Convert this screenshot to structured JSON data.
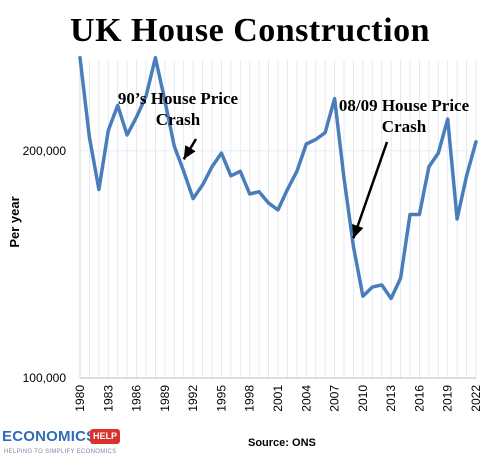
{
  "chart_data": {
    "type": "line",
    "title": "UK House Construction",
    "ylabel": "Per year",
    "xlabel": "",
    "ylim": [
      100000,
      240000
    ],
    "y_ticks": [
      {
        "value": 100000,
        "label": "100,000"
      },
      {
        "value": 200000,
        "label": "200,000"
      }
    ],
    "x_ticks": [
      "1980",
      "1983",
      "1986",
      "1989",
      "1992",
      "1995",
      "1998",
      "2001",
      "2004",
      "2007",
      "2010",
      "2013",
      "2016",
      "2019",
      "2022"
    ],
    "grid": "vertical",
    "series": [
      {
        "color": "#4a7ebb",
        "x": [
          1980,
          1981,
          1982,
          1983,
          1984,
          1985,
          1986,
          1987,
          1988,
          1989,
          1990,
          1991,
          1992,
          1993,
          1994,
          1995,
          1996,
          1997,
          1998,
          1999,
          2000,
          2001,
          2002,
          2003,
          2004,
          2005,
          2006,
          2007,
          2008,
          2009,
          2010,
          2011,
          2012,
          2013,
          2014,
          2015,
          2016,
          2017,
          2018,
          2019,
          2020,
          2021,
          2022
        ],
        "values": [
          241000,
          206000,
          183000,
          209000,
          220000,
          207000,
          215000,
          224000,
          241000,
          222000,
          202000,
          191000,
          179000,
          185000,
          193000,
          199000,
          189000,
          191000,
          181000,
          182000,
          177000,
          174000,
          183000,
          191000,
          203000,
          205000,
          208000,
          223000,
          188000,
          158000,
          136000,
          140000,
          141000,
          135000,
          144000,
          172000,
          172000,
          193000,
          199000,
          214000,
          170000,
          189000,
          204000
        ]
      }
    ],
    "annotations": [
      {
        "lines": [
          "90’s House Price",
          "Crash"
        ],
        "arrow_to_year": 1991
      },
      {
        "lines": [
          "08/09 House Price",
          "Crash"
        ],
        "arrow_to_year": 2009
      }
    ]
  },
  "footer": {
    "source": "Source: ONS",
    "logo_word": "ECONOMICS",
    "logo_badge": "HELP",
    "logo_tagline": "HELPING TO SIMPLIFY ECONOMICS"
  }
}
